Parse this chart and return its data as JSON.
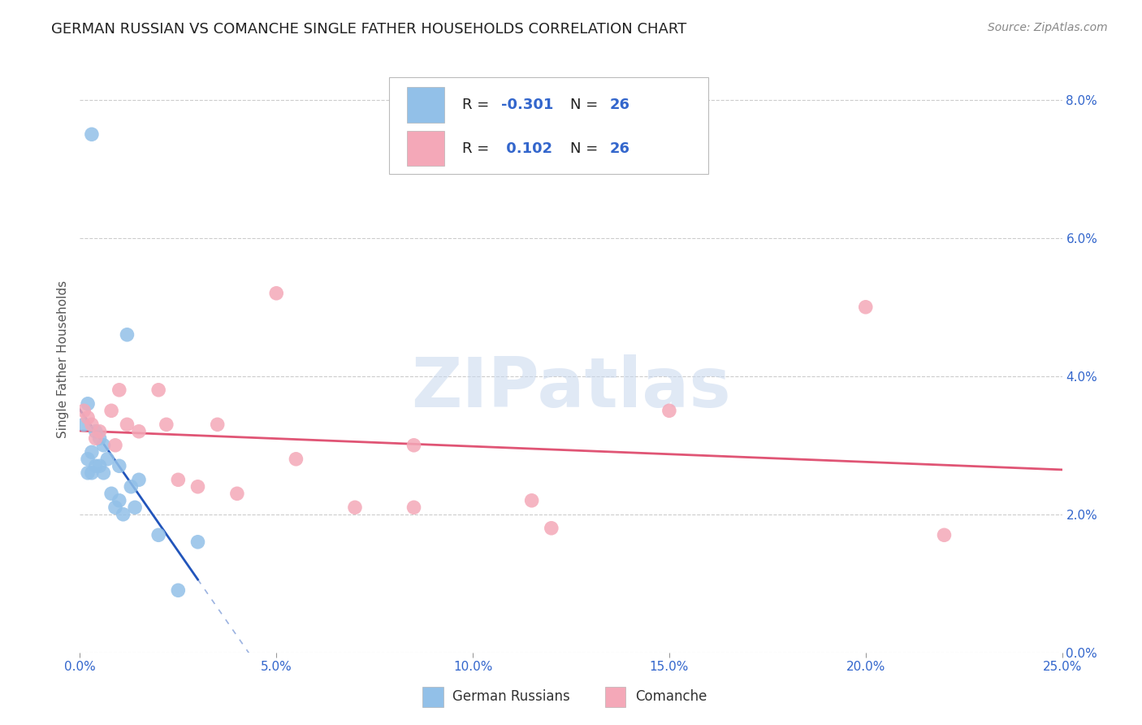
{
  "title": "GERMAN RUSSIAN VS COMANCHE SINGLE FATHER HOUSEHOLDS CORRELATION CHART",
  "source": "Source: ZipAtlas.com",
  "ylabel": "Single Father Households",
  "xlabel_ticks": [
    "0.0%",
    "5.0%",
    "10.0%",
    "15.0%",
    "20.0%",
    "25.0%"
  ],
  "xlabel_vals": [
    0.0,
    5.0,
    10.0,
    15.0,
    20.0,
    25.0
  ],
  "ylabel_ticks": [
    "0.0%",
    "2.0%",
    "4.0%",
    "6.0%",
    "8.0%"
  ],
  "ylabel_vals": [
    0.0,
    2.0,
    4.0,
    6.0,
    8.0
  ],
  "xlim": [
    0.0,
    25.0
  ],
  "ylim": [
    0.0,
    8.5
  ],
  "gr_color": "#92C0E8",
  "co_color": "#F4A8B8",
  "gr_line_color": "#2255BB",
  "co_line_color": "#E05575",
  "background_color": "#ffffff",
  "german_russians": [
    [
      0.3,
      7.5
    ],
    [
      1.2,
      4.6
    ],
    [
      0.2,
      3.6
    ],
    [
      0.1,
      3.3
    ],
    [
      0.4,
      3.2
    ],
    [
      0.5,
      3.1
    ],
    [
      0.6,
      3.0
    ],
    [
      0.3,
      2.9
    ],
    [
      0.2,
      2.8
    ],
    [
      0.7,
      2.8
    ],
    [
      0.4,
      2.7
    ],
    [
      0.5,
      2.7
    ],
    [
      1.0,
      2.7
    ],
    [
      0.2,
      2.6
    ],
    [
      0.3,
      2.6
    ],
    [
      0.6,
      2.6
    ],
    [
      1.5,
      2.5
    ],
    [
      1.3,
      2.4
    ],
    [
      0.8,
      2.3
    ],
    [
      1.0,
      2.2
    ],
    [
      0.9,
      2.1
    ],
    [
      1.4,
      2.1
    ],
    [
      1.1,
      2.0
    ],
    [
      2.0,
      1.7
    ],
    [
      3.0,
      1.6
    ],
    [
      2.5,
      0.9
    ]
  ],
  "comanche": [
    [
      0.1,
      3.5
    ],
    [
      0.2,
      3.4
    ],
    [
      0.3,
      3.3
    ],
    [
      0.5,
      3.2
    ],
    [
      0.4,
      3.1
    ],
    [
      0.8,
      3.5
    ],
    [
      0.9,
      3.0
    ],
    [
      1.0,
      3.8
    ],
    [
      1.2,
      3.3
    ],
    [
      1.5,
      3.2
    ],
    [
      2.0,
      3.8
    ],
    [
      2.2,
      3.3
    ],
    [
      2.5,
      2.5
    ],
    [
      3.0,
      2.4
    ],
    [
      3.5,
      3.3
    ],
    [
      4.0,
      2.3
    ],
    [
      5.0,
      5.2
    ],
    [
      5.5,
      2.8
    ],
    [
      7.0,
      2.1
    ],
    [
      8.5,
      2.1
    ],
    [
      8.5,
      3.0
    ],
    [
      11.5,
      2.2
    ],
    [
      12.0,
      1.8
    ],
    [
      15.0,
      3.5
    ],
    [
      20.0,
      5.0
    ],
    [
      22.0,
      1.7
    ]
  ],
  "title_fontsize": 13,
  "label_fontsize": 11,
  "tick_fontsize": 11,
  "source_fontsize": 10,
  "blue_text": "#3366CC",
  "dark_text": "#222222",
  "grid_color": "#CCCCCC"
}
